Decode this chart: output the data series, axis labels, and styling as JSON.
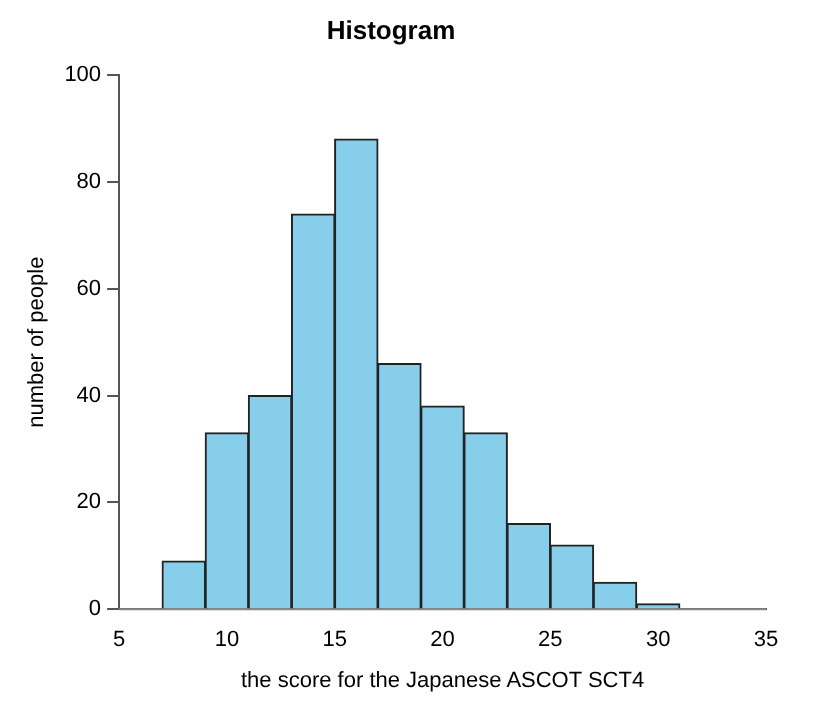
{
  "chart_data": {
    "type": "histogram",
    "title": "Histogram",
    "xlabel": "the score for the Japanese ASCOT SCT4",
    "ylabel": "number of people",
    "bins": [
      7,
      9,
      11,
      13,
      15,
      17,
      19,
      21,
      23,
      25,
      27,
      29,
      31
    ],
    "values": [
      9,
      33,
      40,
      74,
      88,
      46,
      38,
      33,
      16,
      12,
      5,
      1
    ],
    "color": "#87ceeb",
    "xlim": [
      5,
      35
    ],
    "xticks": [
      5,
      10,
      15,
      20,
      25,
      30,
      35
    ],
    "ylim": [
      0,
      100
    ],
    "yticks": [
      0,
      20,
      40,
      60,
      80,
      100
    ],
    "ref_lines": [
      {
        "axis": "y",
        "value": 0,
        "color": "#888888"
      }
    ],
    "grid": false,
    "legend": false
  }
}
